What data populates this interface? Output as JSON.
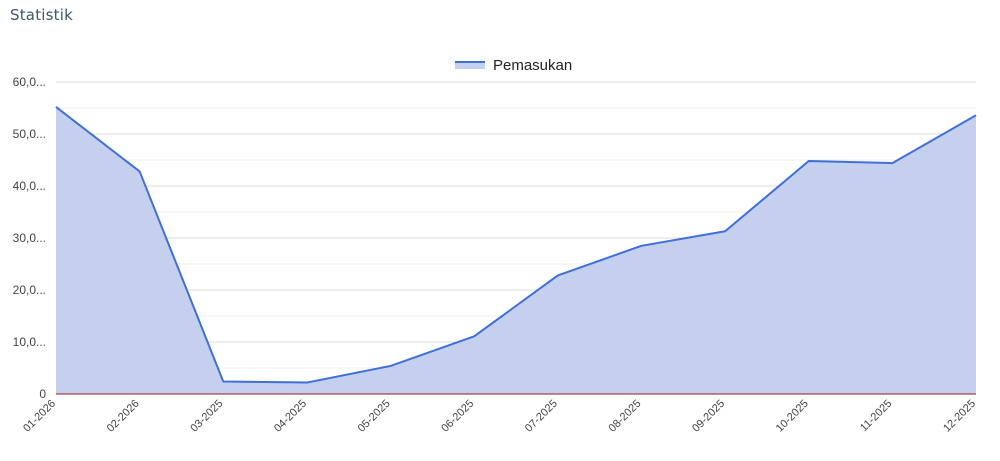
{
  "page": {
    "title": "Statistik"
  },
  "chart_data": {
    "type": "area",
    "categories": [
      "01-2026",
      "02-2026",
      "03-2025",
      "04-2025",
      "05-2025",
      "06-2025",
      "07-2025",
      "08-2025",
      "09-2025",
      "10-2025",
      "11-2025",
      "12-2025"
    ],
    "series": [
      {
        "name": "Pemasukan",
        "values": [
          55.2,
          42.8,
          2.4,
          2.2,
          5.4,
          11.1,
          22.8,
          28.5,
          31.3,
          44.8,
          44.4,
          53.6
        ]
      }
    ],
    "ylim": [
      0,
      60
    ],
    "yticks": [
      0,
      10,
      20,
      30,
      40,
      50,
      60
    ],
    "ytick_labels": [
      "0",
      "10,0...",
      "20,0...",
      "30,0...",
      "40,0...",
      "50,0...",
      "60,0..."
    ],
    "legend_position": "top-center",
    "grid": true,
    "colors": {
      "line": "#3f6fd8",
      "fill": "#c5cfee",
      "grid": "#dddddd",
      "baseline": "#9a1c1c"
    }
  }
}
